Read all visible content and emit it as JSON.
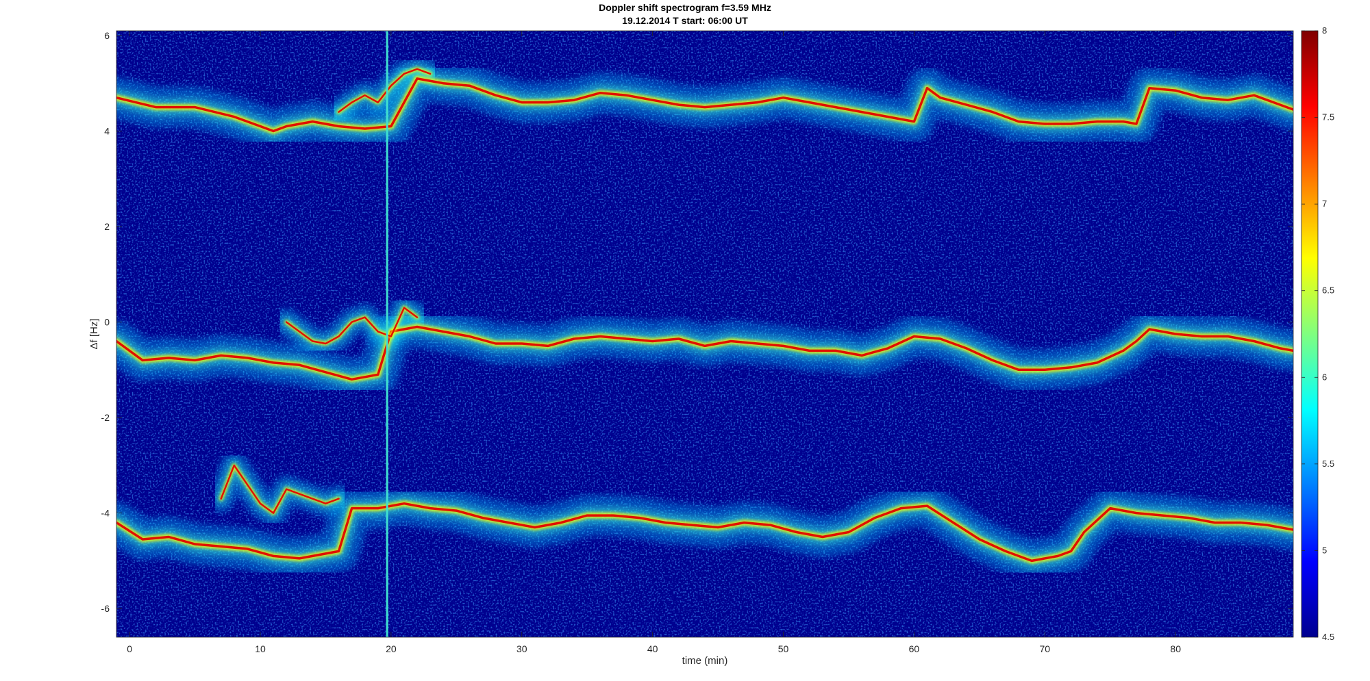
{
  "chart_data": {
    "type": "heatmap",
    "title": "Doppler shift spectrogram f=3.59 MHz",
    "subtitle": "19.12.2014   T start: 06:00 UT",
    "xlabel": "time (min)",
    "ylabel": "Δf [Hz]",
    "xlim": [
      -1,
      89
    ],
    "ylim": [
      -6.6,
      6.1
    ],
    "x_ticks": [
      0,
      10,
      20,
      30,
      40,
      50,
      60,
      70,
      80
    ],
    "y_ticks": [
      -6,
      -4,
      -2,
      0,
      2,
      4,
      6
    ],
    "colorbar": {
      "range": [
        4.5,
        8
      ],
      "ticks": [
        4.5,
        5,
        5.5,
        6,
        6.5,
        7,
        7.5,
        8
      ],
      "colormap": "jet"
    },
    "background_color": "#00008f",
    "series": [
      {
        "x": [
          -1,
          2,
          5,
          8,
          10,
          11,
          12,
          14,
          16,
          18,
          20,
          22,
          24,
          26,
          28,
          30,
          32,
          34,
          36,
          38,
          40,
          42,
          44,
          46,
          48,
          50,
          52,
          54,
          56,
          58,
          60,
          61,
          62,
          64,
          66,
          68,
          70,
          72,
          74,
          76,
          77,
          78,
          80,
          82,
          84,
          86,
          88,
          89
        ],
        "y": [
          4.7,
          4.5,
          4.5,
          4.3,
          4.1,
          4.0,
          4.1,
          4.2,
          4.1,
          4.05,
          4.1,
          5.1,
          5.0,
          4.95,
          4.75,
          4.6,
          4.6,
          4.65,
          4.8,
          4.75,
          4.65,
          4.55,
          4.5,
          4.55,
          4.6,
          4.7,
          4.6,
          4.5,
          4.4,
          4.3,
          4.2,
          4.9,
          4.7,
          4.55,
          4.4,
          4.2,
          4.15,
          4.15,
          4.2,
          4.2,
          4.15,
          4.9,
          4.85,
          4.7,
          4.65,
          4.75,
          4.55,
          4.45
        ]
      },
      {
        "x": [
          -1,
          1,
          3,
          5,
          7,
          9,
          11,
          13,
          15,
          17,
          19,
          20,
          22,
          24,
          26,
          28,
          30,
          32,
          34,
          36,
          38,
          40,
          42,
          44,
          46,
          48,
          50,
          52,
          54,
          56,
          58,
          60,
          62,
          64,
          66,
          68,
          70,
          72,
          74,
          76,
          77,
          78,
          80,
          82,
          84,
          86,
          88,
          89
        ],
        "y": [
          -0.4,
          -0.8,
          -0.75,
          -0.8,
          -0.7,
          -0.75,
          -0.85,
          -0.9,
          -1.05,
          -1.2,
          -1.1,
          -0.2,
          -0.1,
          -0.2,
          -0.3,
          -0.45,
          -0.45,
          -0.5,
          -0.35,
          -0.3,
          -0.35,
          -0.4,
          -0.35,
          -0.5,
          -0.4,
          -0.45,
          -0.5,
          -0.6,
          -0.6,
          -0.7,
          -0.55,
          -0.3,
          -0.35,
          -0.55,
          -0.8,
          -1.0,
          -1.0,
          -0.95,
          -0.85,
          -0.6,
          -0.4,
          -0.15,
          -0.25,
          -0.3,
          -0.3,
          -0.4,
          -0.55,
          -0.6
        ]
      },
      {
        "x": [
          -1,
          1,
          3,
          5,
          7,
          9,
          11,
          13,
          15,
          16,
          17,
          19,
          21,
          23,
          25,
          27,
          29,
          31,
          33,
          35,
          37,
          39,
          41,
          43,
          45,
          47,
          49,
          51,
          53,
          55,
          57,
          59,
          61,
          63,
          65,
          67,
          69,
          71,
          72,
          73,
          75,
          77,
          79,
          81,
          83,
          85,
          87,
          89
        ],
        "y": [
          -4.2,
          -4.55,
          -4.5,
          -4.65,
          -4.7,
          -4.75,
          -4.9,
          -4.95,
          -4.85,
          -4.8,
          -3.9,
          -3.9,
          -3.8,
          -3.9,
          -3.95,
          -4.1,
          -4.2,
          -4.3,
          -4.2,
          -4.05,
          -4.05,
          -4.1,
          -4.2,
          -4.25,
          -4.3,
          -4.2,
          -4.25,
          -4.4,
          -4.5,
          -4.4,
          -4.1,
          -3.9,
          -3.85,
          -4.2,
          -4.55,
          -4.8,
          -5.0,
          -4.9,
          -4.8,
          -4.4,
          -3.9,
          -4.0,
          -4.05,
          -4.1,
          -4.2,
          -4.2,
          -4.25,
          -4.35
        ]
      },
      {
        "x": [
          7,
          8,
          9,
          10,
          11,
          12,
          13,
          14,
          15,
          16
        ],
        "y": [
          -3.7,
          -3.0,
          -3.4,
          -3.8,
          -4.0,
          -3.5,
          -3.6,
          -3.7,
          -3.8,
          -3.7
        ]
      },
      {
        "x": [
          12,
          14,
          15,
          16,
          17,
          18,
          19,
          20,
          21,
          22
        ],
        "y": [
          0.0,
          -0.4,
          -0.45,
          -0.3,
          0.0,
          0.1,
          -0.2,
          -0.3,
          0.3,
          0.1
        ]
      },
      {
        "x": [
          16,
          17,
          18,
          19,
          20,
          21,
          22,
          23
        ],
        "y": [
          4.4,
          4.6,
          4.75,
          4.6,
          4.95,
          5.2,
          5.3,
          5.2
        ]
      }
    ],
    "vertical_feature_x": 19.7
  }
}
